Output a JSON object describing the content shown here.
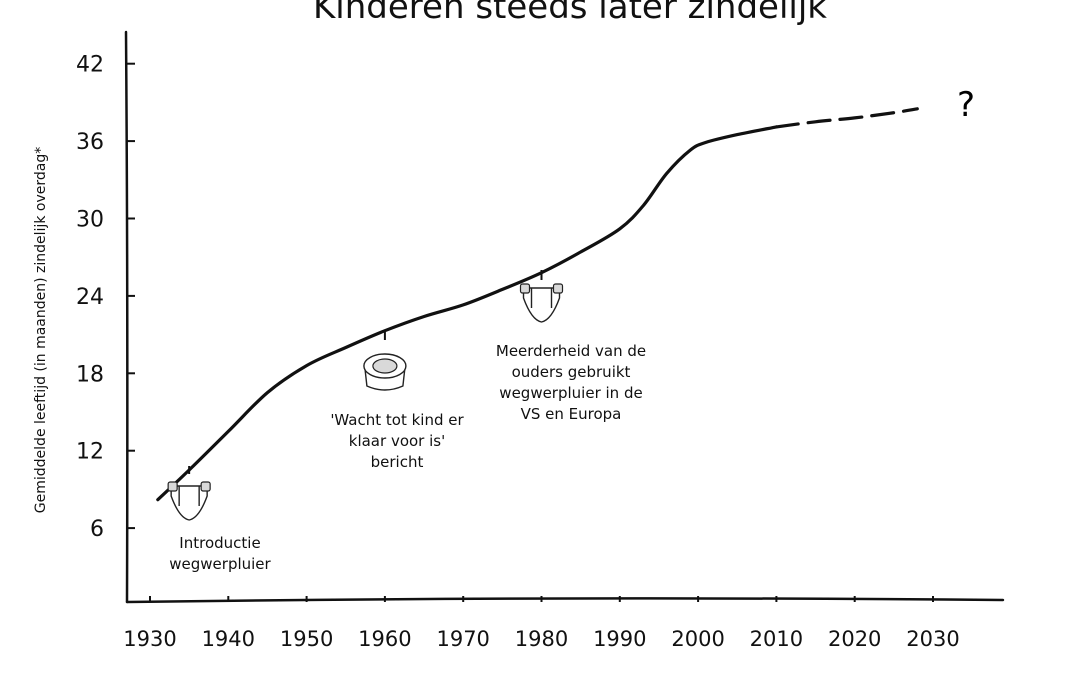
{
  "chart_data": {
    "type": "line",
    "title": "Kinderen steeds later zindelijk",
    "xlabel": "",
    "ylabel": "Gemiddelde leeftijd (in maanden) zindelijk overdag*",
    "xlim": [
      1924,
      2035
    ],
    "ylim": [
      0,
      45
    ],
    "xticks": [
      "1930",
      "1940",
      "1950",
      "1960",
      "1970",
      "1980",
      "1990",
      "2000",
      "2010",
      "2020",
      "2030"
    ],
    "yticks": [
      "6",
      "12",
      "18",
      "24",
      "30",
      "36",
      "42"
    ],
    "grid": false,
    "series": [
      {
        "style": "solid",
        "color": "#111111",
        "x": [
          1931,
          1935,
          1940,
          1945,
          1950,
          1955,
          1960,
          1965,
          1970,
          1975,
          1980,
          1985,
          1990,
          1993,
          1996,
          1999,
          2001,
          2005,
          2010
        ],
        "y": [
          8.2,
          10.5,
          13.5,
          16.5,
          18.6,
          20.0,
          21.3,
          22.4,
          23.3,
          24.5,
          25.8,
          27.4,
          29.2,
          31.0,
          33.5,
          35.3,
          35.9,
          36.5,
          37.1
        ]
      },
      {
        "style": "dashed",
        "color": "#111111",
        "x": [
          2010,
          2015,
          2020,
          2025,
          2028
        ],
        "y": [
          37.1,
          37.5,
          37.8,
          38.2,
          38.5
        ]
      }
    ],
    "annotations": [
      {
        "x": 1935,
        "y": 10.5,
        "lines": [
          "Introductie",
          "wegwerpluier"
        ],
        "icon": "diaper-icon"
      },
      {
        "x": 1960,
        "y": 21.3,
        "lines": [
          "'Wacht tot kind er",
          "klaar voor is'",
          "bericht"
        ],
        "icon": "potty-icon"
      },
      {
        "x": 1980,
        "y": 25.8,
        "lines": [
          "Meerderheid van de",
          "ouders gebruikt",
          "wegwerpluier in de",
          "VS en Europa"
        ],
        "icon": "diaper-icon"
      }
    ],
    "end_marker": "?"
  }
}
